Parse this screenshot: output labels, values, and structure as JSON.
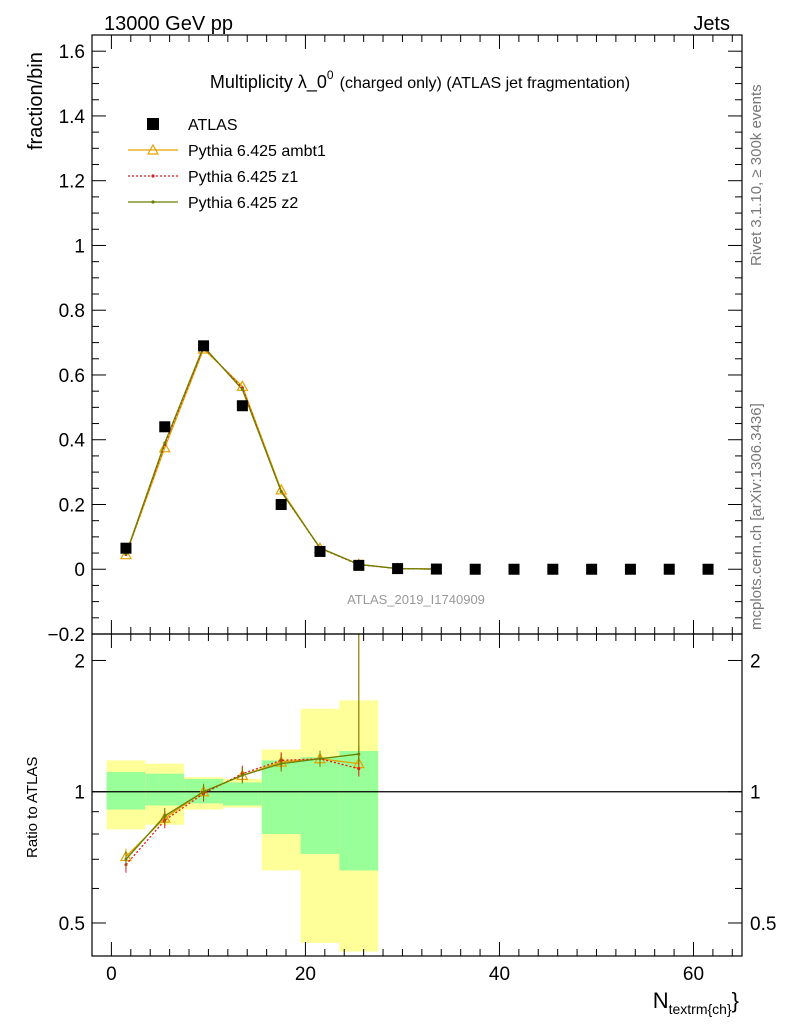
{
  "header": {
    "left": "13000 GeV pp",
    "right": "Jets"
  },
  "side_labels": {
    "rivet": "Rivet 3.1.10, ≥ 300k events",
    "mcplots": "mcplots.cern.ch [arXiv:1306.3436]"
  },
  "chart_data": [
    {
      "type": "scatter",
      "title": "Multiplicity λ_0",
      "title_superscript": "0",
      "title_suffix": "(charged only) (ATLAS jet fragmentation)",
      "ylabel": "fraction/bin",
      "watermark": "ATLAS_2019_I1740909",
      "xlim": [
        -2,
        65
      ],
      "ylim": [
        -0.2,
        1.65
      ],
      "yticks": [
        -0.2,
        0,
        0.2,
        0.4,
        0.6,
        0.8,
        1,
        1.2,
        1.4,
        1.6
      ],
      "ytick_labels": [
        "−0.2",
        "0",
        "0.2",
        "0.4",
        "0.6",
        "0.8",
        "1",
        "1.2",
        "1.4",
        "1.6"
      ],
      "legend_position": "top-left",
      "series": [
        {
          "name": "ATLAS",
          "style": "data",
          "color": "#000000",
          "x": [
            1.5,
            5.5,
            9.5,
            13.5,
            17.5,
            21.5,
            25.5,
            29.5,
            33.5,
            37.5,
            41.5,
            45.5,
            49.5,
            53.5,
            57.5,
            61.5
          ],
          "y": [
            0.065,
            0.44,
            0.69,
            0.505,
            0.2,
            0.055,
            0.012,
            0.002,
            0.0005,
            0,
            0,
            0,
            0,
            0,
            0,
            0
          ]
        },
        {
          "name": "Pythia 6.425 ambt1",
          "style": "triangle",
          "color": "#e6a100",
          "x": [
            1.5,
            5.5,
            9.5,
            13.5,
            17.5,
            21.5,
            25.5,
            29.5,
            33.5
          ],
          "y": [
            0.045,
            0.375,
            0.68,
            0.565,
            0.245,
            0.065,
            0.015,
            0.002,
            0.0005
          ]
        },
        {
          "name": "Pythia 6.425 z1",
          "style": "dotted",
          "color": "#e31a1c",
          "x": [
            1.5,
            5.5,
            9.5,
            13.5,
            17.5,
            21.5,
            25.5,
            29.5,
            33.5
          ],
          "y": [
            0.045,
            0.385,
            0.685,
            0.56,
            0.24,
            0.065,
            0.014,
            0.002,
            0.0005
          ]
        },
        {
          "name": "Pythia 6.425 z2",
          "style": "solid",
          "color": "#6b7f00",
          "x": [
            1.5,
            5.5,
            9.5,
            13.5,
            17.5,
            21.5,
            25.5,
            29.5,
            33.5
          ],
          "y": [
            0.047,
            0.39,
            0.688,
            0.555,
            0.24,
            0.066,
            0.015,
            0.002,
            0.0005
          ]
        }
      ]
    },
    {
      "type": "line",
      "ylabel": "Ratio to ATLAS",
      "xlabel": "N",
      "xlabel_sub": "textrm{ch}",
      "xlim": [
        -2,
        65
      ],
      "ylim": [
        0.42,
        2.3
      ],
      "log_y": true,
      "xticks": [
        0,
        20,
        40,
        60
      ],
      "xtick_labels": [
        "0",
        "20",
        "40",
        "60"
      ],
      "yticks": [
        0.5,
        1,
        2
      ],
      "ytick_labels": [
        "0.5",
        "1",
        "2"
      ],
      "reference_line": 1,
      "bands": {
        "bin_edges": [
          -0.5,
          3.5,
          7.5,
          11.5,
          15.5,
          19.5,
          23.5,
          27.5
        ],
        "green_lo": [
          0.91,
          0.93,
          0.94,
          0.93,
          0.8,
          0.72,
          0.66
        ],
        "green_hi": [
          1.11,
          1.1,
          1.07,
          1.05,
          1.18,
          1.2,
          1.24
        ],
        "yellow_lo": [
          0.82,
          0.84,
          0.91,
          0.92,
          0.66,
          0.45,
          0.43
        ],
        "yellow_hi": [
          1.18,
          1.16,
          1.08,
          1.07,
          1.25,
          1.55,
          1.62
        ]
      },
      "series": [
        {
          "name": "Pythia 6.425 ambt1",
          "color": "#e6a100",
          "x": [
            1.5,
            5.5,
            9.5,
            13.5,
            17.5,
            21.5,
            25.5
          ],
          "y": [
            0.71,
            0.87,
            1.0,
            1.09,
            1.17,
            1.19,
            1.16
          ]
        },
        {
          "name": "Pythia 6.425 z1",
          "color": "#e31a1c",
          "x": [
            1.5,
            5.5,
            9.5,
            13.5,
            17.5,
            21.5,
            25.5
          ],
          "y": [
            0.68,
            0.86,
            0.99,
            1.1,
            1.18,
            1.19,
            1.13
          ]
        },
        {
          "name": "Pythia 6.425 z2",
          "color": "#6b7f00",
          "x": [
            1.5,
            5.5,
            9.5,
            13.5,
            17.5,
            21.5,
            25.5
          ],
          "y": [
            0.7,
            0.88,
            1.0,
            1.09,
            1.16,
            1.19,
            1.22
          ]
        }
      ]
    }
  ]
}
